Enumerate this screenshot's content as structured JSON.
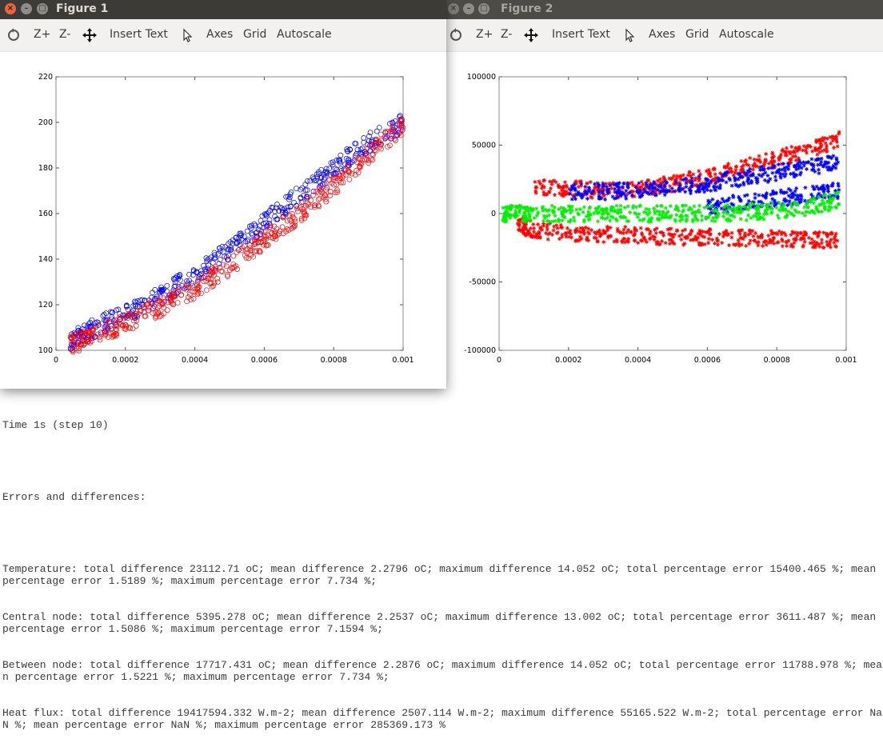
{
  "windows": [
    {
      "title": "Figure 1",
      "toolbar": {
        "zoom_in": "Z+",
        "zoom_out": "Z-",
        "insert_text": "Insert Text",
        "axes": "Axes",
        "grid": "Grid",
        "autoscale": "Autoscale"
      },
      "chart_data": {
        "type": "scatter",
        "title": "",
        "xlabel": "",
        "ylabel": "",
        "xlim": [
          0,
          0.001
        ],
        "ylim": [
          100,
          220
        ],
        "x_ticks": [
          "0",
          "0.0002",
          "0.0004",
          "0.0006",
          "0.0008",
          "0.001"
        ],
        "y_ticks": [
          "100",
          "120",
          "140",
          "160",
          "180",
          "200",
          "220"
        ],
        "grid": false,
        "legend": "none",
        "series": [
          {
            "color": "#0000ff",
            "marker": "circle",
            "x": [
              4e-05,
              0.0001,
              0.0002,
              0.0003,
              0.0004,
              0.0005,
              0.0006,
              0.0007,
              0.0008,
              0.0009,
              0.001
            ],
            "y": [
              104,
              109,
              116,
              124,
              133,
              144,
              156,
              168,
              180,
              191,
              200
            ]
          },
          {
            "color": "#ff0000",
            "marker": "circle",
            "x": [
              4e-05,
              0.0001,
              0.0002,
              0.0003,
              0.0004,
              0.0005,
              0.0006,
              0.0007,
              0.0008,
              0.0009,
              0.001
            ],
            "y": [
              102,
              106,
              112,
              119,
              127,
              137,
              148,
              160,
              172,
              186,
              199
            ]
          }
        ]
      }
    },
    {
      "title": "Figure 2",
      "toolbar": {
        "zoom_in": "Z+",
        "zoom_out": "Z-",
        "insert_text": "Insert Text",
        "axes": "Axes",
        "grid": "Grid",
        "autoscale": "Autoscale"
      },
      "chart_data": {
        "type": "scatter",
        "title": "",
        "xlabel": "",
        "ylabel": "",
        "xlim": [
          0,
          0.001
        ],
        "ylim": [
          -100000,
          100000
        ],
        "x_ticks": [
          "0",
          "0.0002",
          "0.0004",
          "0.0006",
          "0.0008",
          "0.001"
        ],
        "y_ticks": [
          "-100000",
          "-50000",
          "0",
          "50000",
          "100000"
        ],
        "grid": false,
        "legend": "none",
        "series": [
          {
            "color": "#ff0000",
            "marker": "star",
            "x": [
              0.0001,
              0.0002,
              0.0003,
              0.0004,
              0.0005,
              0.0006,
              0.0007,
              0.0008,
              0.0009,
              0.00098
            ],
            "y": [
              20000,
              18000,
              17000,
              18000,
              22000,
              27000,
              33000,
              40000,
              47000,
              55000
            ]
          },
          {
            "color": "#0000ff",
            "marker": "star",
            "x": [
              0.0002,
              0.0003,
              0.0004,
              0.0005,
              0.0006,
              0.0007,
              0.0008,
              0.0009,
              0.00098
            ],
            "y": [
              16000,
              16000,
              17000,
              19000,
              22000,
              26000,
              30000,
              34000,
              38000
            ]
          },
          {
            "color": "#ff0000",
            "marker": "star",
            "x": [
              5e-05,
              0.0001,
              0.0002,
              0.0003,
              0.0004,
              0.0005,
              0.0006,
              0.0007,
              0.0008,
              0.0009,
              0.00098
            ],
            "y": [
              -8000,
              -12000,
              -14000,
              -15000,
              -16000,
              -17000,
              -17000,
              -18000,
              -18000,
              -19000,
              -20000
            ]
          },
          {
            "color": "#0000ff",
            "marker": "star",
            "x": [
              0.0006,
              0.0007,
              0.0008,
              0.0009,
              0.00098
            ],
            "y": [
              5000,
              8000,
              11000,
              14000,
              17000
            ]
          },
          {
            "color": "#00ee00",
            "marker": "star",
            "x": [
              1e-05,
              5e-05,
              0.0001,
              0.0002,
              0.0003,
              0.0004,
              0.0005,
              0.0006,
              0.0007,
              0.0008,
              0.0009,
              0.00098
            ],
            "y": [
              0,
              0,
              0,
              0,
              0,
              0,
              0,
              0,
              1000,
              2000,
              5000,
              10000
            ]
          }
        ]
      }
    }
  ],
  "terminal": {
    "lines": [
      "Time 1s (step 10)",
      "",
      "Errors and differences:",
      "",
      "Temperature: total difference 23112.71 oC; mean difference 2.2796 oC; maximum difference 14.052 oC; total percentage error 15400.465 %; mean percentage error 1.5189 %; maximum percentage error 7.734 %;",
      "Central node: total difference 5395.278 oC; mean difference 2.2537 oC; maximum difference 13.002 oC; total percentage error 3611.487 %; mean percentage error 1.5086 %; maximum percentage error 7.1594 %;",
      "Between node: total difference 17717.431 oC; mean difference 2.2876 oC; maximum difference 14.052 oC; total percentage error 11788.978 %; mean percentage error 1.5221 %; maximum percentage error 7.734 %;",
      "Heat flux: total difference 19417594.332 W.m-2; mean difference 2507.114 W.m-2; maximum difference 55165.522 W.m-2; total percentage error NaN %; mean percentage error NaN %; maximum percentage error 285369.173 %"
    ]
  }
}
